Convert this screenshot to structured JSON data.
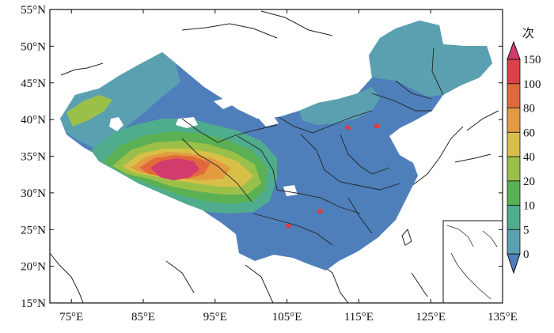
{
  "map": {
    "lon_range": [
      72,
      135
    ],
    "lat_range": [
      15,
      55
    ],
    "lon_ticks": [
      {
        "value": 75,
        "label": "75°E"
      },
      {
        "value": 85,
        "label": "85°E"
      },
      {
        "value": 95,
        "label": "95°E"
      },
      {
        "value": 105,
        "label": "105°E"
      },
      {
        "value": 115,
        "label": "115°E"
      },
      {
        "value": 125,
        "label": "125°E"
      },
      {
        "value": 135,
        "label": "135°E"
      }
    ],
    "lat_ticks": [
      {
        "value": 55,
        "label": "55°N"
      },
      {
        "value": 50,
        "label": "50°N"
      },
      {
        "value": 45,
        "label": "45°N"
      },
      {
        "value": 40,
        "label": "40°N"
      },
      {
        "value": 35,
        "label": "35°N"
      },
      {
        "value": 30,
        "label": "30°N"
      },
      {
        "value": 25,
        "label": "25°N"
      },
      {
        "value": 20,
        "label": "20°N"
      },
      {
        "value": 15,
        "label": "15°N"
      }
    ]
  },
  "colorbar": {
    "unit": "次",
    "levels": [
      "0",
      "5",
      "10",
      "20",
      "40",
      "60",
      "80",
      "100",
      "150"
    ],
    "colors": [
      "#4f7fba",
      "#5aa0b0",
      "#4fad8e",
      "#5cb054",
      "#9bc04a",
      "#d8c048",
      "#e39a40",
      "#e06a3c",
      "#d8404a",
      "#d23c6c"
    ]
  },
  "stations": [
    {
      "lon": 113.5,
      "lat": 38.9
    },
    {
      "lon": 117.5,
      "lat": 39.1
    },
    {
      "lon": 109.6,
      "lat": 27.5
    },
    {
      "lon": 105.2,
      "lat": 25.5
    }
  ]
}
